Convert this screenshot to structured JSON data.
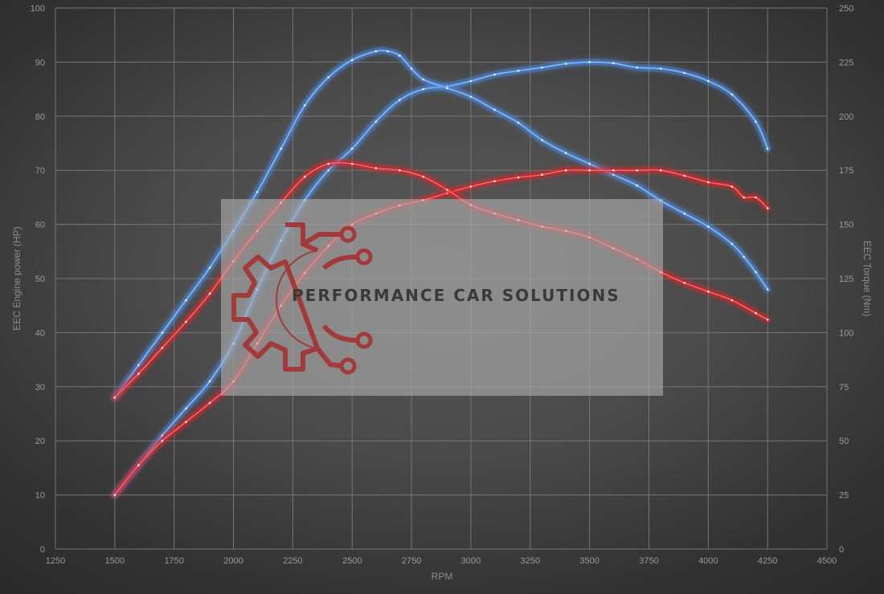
{
  "chart_data": {
    "type": "line",
    "xlabel": "RPM",
    "ylabel_left": "EEC Engine power (HP)",
    "ylabel_right": "EEC Torque (Nm)",
    "xlim": [
      1250,
      4500
    ],
    "ylim_left": [
      0,
      100
    ],
    "ylim_right": [
      0,
      250
    ],
    "x_ticks": [
      1250,
      1500,
      1750,
      2000,
      2250,
      2500,
      2750,
      3000,
      3250,
      3500,
      3750,
      4000,
      4250,
      4500
    ],
    "y_ticks_left": [
      0,
      10,
      20,
      30,
      40,
      50,
      60,
      70,
      80,
      90,
      100
    ],
    "y_ticks_right": [
      0,
      25,
      50,
      75,
      100,
      125,
      150,
      175,
      200,
      225,
      250
    ],
    "grid": true,
    "series": [
      {
        "color": "#4d8fe6",
        "axis": "left",
        "x": [
          1500,
          1600,
          1700,
          1800,
          1900,
          2000,
          2100,
          2200,
          2300,
          2400,
          2500,
          2600,
          2700,
          2800,
          2900,
          3000,
          3100,
          3200,
          3300,
          3400,
          3500,
          3600,
          3700,
          3800,
          3900,
          4000,
          4100,
          4200,
          4250
        ],
        "values": [
          10,
          15.5,
          21,
          26,
          31,
          38,
          48,
          57,
          64.5,
          70,
          74,
          79,
          83,
          85,
          85.5,
          86.5,
          87.7,
          88.4,
          89,
          89.7,
          90,
          89.8,
          89,
          88.8,
          88,
          86.5,
          84,
          79,
          74
        ]
      },
      {
        "color": "#4d8fe6",
        "axis": "right",
        "x": [
          1500,
          1600,
          1700,
          1800,
          1900,
          2000,
          2100,
          2200,
          2300,
          2400,
          2500,
          2600,
          2650,
          2700,
          2750,
          2800,
          2900,
          3000,
          3100,
          3200,
          3300,
          3400,
          3500,
          3600,
          3700,
          3800,
          3900,
          4000,
          4100,
          4150,
          4200,
          4250
        ],
        "values": [
          70,
          85,
          100,
          115,
          130,
          147,
          165,
          185,
          205,
          218,
          226,
          230,
          230,
          228,
          222,
          217,
          213,
          209,
          203,
          197,
          189,
          183,
          178,
          173,
          168,
          161,
          155,
          149,
          141,
          135,
          128,
          120
        ]
      },
      {
        "color": "#e0262b",
        "axis": "left",
        "x": [
          1500,
          1600,
          1700,
          1800,
          1900,
          2000,
          2100,
          2200,
          2300,
          2400,
          2500,
          2600,
          2700,
          2800,
          2900,
          3000,
          3100,
          3200,
          3300,
          3400,
          3500,
          3600,
          3700,
          3800,
          3900,
          4000,
          4100,
          4150,
          4200,
          4250
        ],
        "values": [
          10,
          15.5,
          20,
          23.5,
          27,
          31,
          38,
          45,
          51,
          56,
          60,
          62,
          63.5,
          64.5,
          65.8,
          67,
          68,
          68.7,
          69.2,
          70,
          70,
          70,
          70,
          70,
          69,
          67.8,
          67,
          65,
          65,
          63
        ]
      },
      {
        "color": "#e0262b",
        "axis": "right",
        "x": [
          1500,
          1600,
          1700,
          1800,
          1900,
          2000,
          2100,
          2200,
          2300,
          2400,
          2500,
          2600,
          2700,
          2800,
          2900,
          3000,
          3100,
          3200,
          3300,
          3400,
          3500,
          3600,
          3700,
          3800,
          3900,
          4000,
          4100,
          4200,
          4250
        ],
        "values": [
          70,
          81,
          93,
          105,
          118,
          133,
          147,
          160,
          172,
          178,
          178,
          176,
          175,
          172,
          166,
          159,
          155,
          152,
          149,
          147,
          144,
          139,
          134,
          128,
          123,
          119,
          115,
          109,
          106
        ]
      }
    ]
  },
  "watermark": {
    "text": "PERFORMANCE CAR SOLUTIONS",
    "icon": "gear-circuit-logo-icon"
  }
}
